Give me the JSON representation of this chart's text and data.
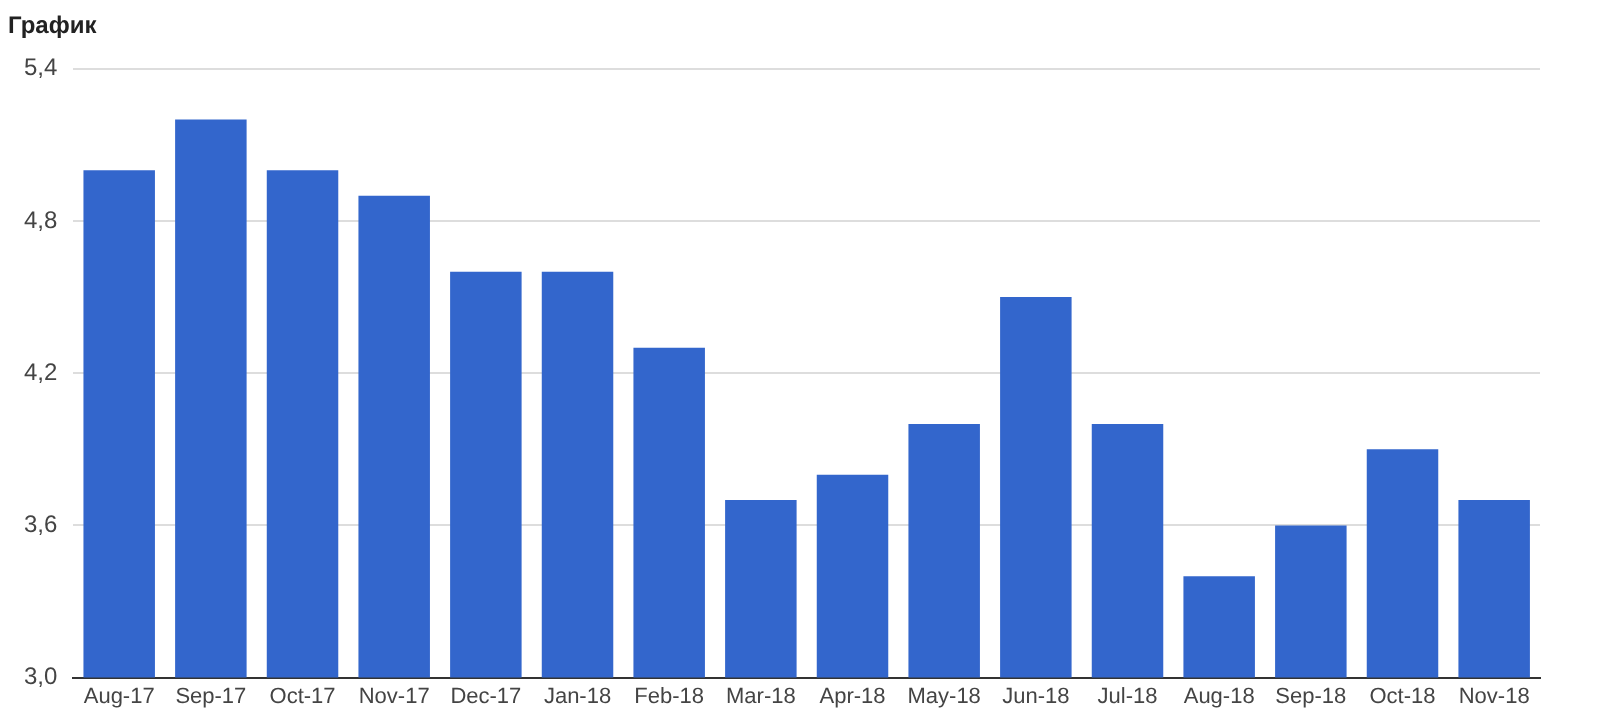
{
  "chart_data": {
    "type": "bar",
    "title": "График",
    "categories": [
      "Aug-17",
      "Sep-17",
      "Oct-17",
      "Nov-17",
      "Dec-17",
      "Jan-18",
      "Feb-18",
      "Mar-18",
      "Apr-18",
      "May-18",
      "Jun-18",
      "Jul-18",
      "Aug-18",
      "Sep-18",
      "Oct-18",
      "Nov-18"
    ],
    "values": [
      5.0,
      5.2,
      5.0,
      4.9,
      4.6,
      4.6,
      4.3,
      3.7,
      3.8,
      4.0,
      4.5,
      4.0,
      3.4,
      3.6,
      3.9,
      3.7
    ],
    "color": "#3366cc",
    "ylim": [
      3.0,
      5.4
    ],
    "yticks": [
      {
        "value": 3.0,
        "label": "3,0"
      },
      {
        "value": 3.6,
        "label": "3,6"
      },
      {
        "value": 4.2,
        "label": "4,2"
      },
      {
        "value": 4.8,
        "label": "4,8"
      },
      {
        "value": 5.4,
        "label": "5,4"
      }
    ],
    "grid": "y"
  }
}
